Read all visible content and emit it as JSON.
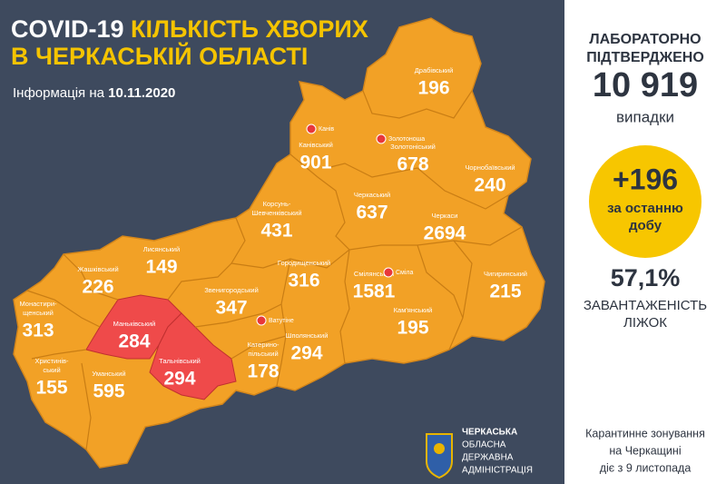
{
  "header": {
    "title_white": "COVID-19 ",
    "title_yellow": "КІЛЬКІСТЬ ХВОРИХ",
    "title_line2": "В ЧЕРКАСЬКІЙ ОБЛАСТІ",
    "info_label": "Інформація на ",
    "date": "10.11.2020"
  },
  "regions": [
    {
      "name": [
        "Драбівський"
      ],
      "value": 196
    },
    {
      "name": [
        "Канівський"
      ],
      "value": 901
    },
    {
      "name": [
        "Золотоніський"
      ],
      "value": 678
    },
    {
      "name": [
        "Чорнобаївський"
      ],
      "value": 240
    },
    {
      "name": [
        "Черкаський"
      ],
      "value": 637
    },
    {
      "name": [
        "Черкаси"
      ],
      "value": 2694
    },
    {
      "name": [
        "Корсунь-",
        "Шевченківський"
      ],
      "value": 431
    },
    {
      "name": [
        "Лисянський"
      ],
      "value": 149
    },
    {
      "name": [
        "Городищенський"
      ],
      "value": 316
    },
    {
      "name": [
        "Смілянський"
      ],
      "value": 1581
    },
    {
      "name": [
        "Жашківський"
      ],
      "value": 226
    },
    {
      "name": [
        "Монастири-",
        "щенський"
      ],
      "value": 313
    },
    {
      "name": [
        "Звенигородський"
      ],
      "value": 347
    },
    {
      "name": [
        "Чигиринський"
      ],
      "value": 215
    },
    {
      "name": [
        "Маньківський"
      ],
      "value": 284
    },
    {
      "name": [
        "Тальнівський"
      ],
      "value": 294
    },
    {
      "name": [
        "Кам'янський"
      ],
      "value": 195
    },
    {
      "name": [
        "Шполянський"
      ],
      "value": 294
    },
    {
      "name": [
        "Катерино-",
        "пільський"
      ],
      "value": 178
    },
    {
      "name": [
        "Христинів-",
        "ський"
      ],
      "value": 155
    },
    {
      "name": [
        "Уманський"
      ],
      "value": 595
    }
  ],
  "cities": [
    "Канів",
    "Золотоноша",
    "Сміла",
    "Ватутіне"
  ],
  "panel": {
    "confirmed_label": [
      "ЛАБОРАТОРНО",
      "ПІДТВЕРДЖЕНО"
    ],
    "confirmed_value": "10 919",
    "confirmed_unit": "випадки",
    "new_value": "+196",
    "new_label": [
      "за останню",
      "добу"
    ],
    "occupancy_value": "57,1%",
    "occupancy_label": [
      "ЗАВАНТАЖЕНІСТЬ",
      "ЛІЖОК"
    ],
    "quarantine": [
      "Карантинне зонування",
      "на Черкащині",
      "діє з 9 листопада"
    ]
  },
  "logo": [
    "ЧЕРКАСЬКА",
    "ОБЛАСНА",
    "ДЕРЖАВНА",
    "АДМІНІСТРАЦІЯ"
  ]
}
